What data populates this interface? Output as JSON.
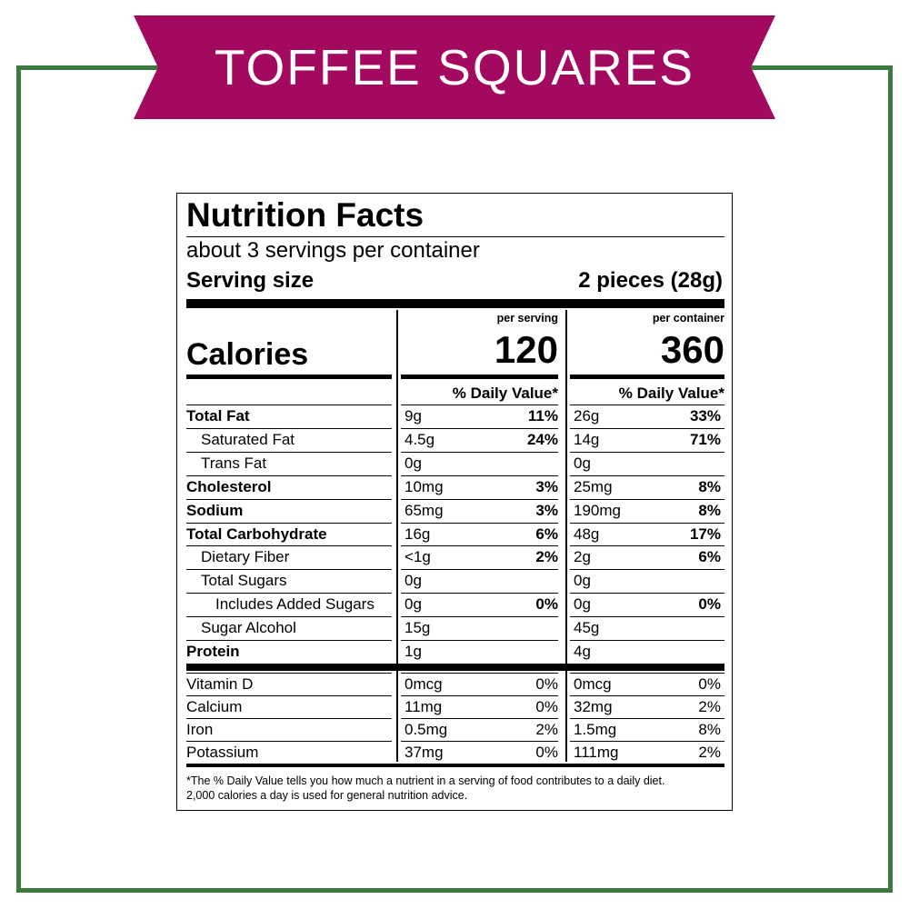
{
  "banner": {
    "title": "TOFFEE SQUARES"
  },
  "label": {
    "title": "Nutrition Facts",
    "servings_per_container": "about 3 servings per container",
    "serving_size_label": "Serving size",
    "serving_size_value": "2 pieces (28g)",
    "per_serving_header": "per serving",
    "per_container_header": "per container",
    "calories_label": "Calories",
    "calories_per_serving": "120",
    "calories_per_container": "360",
    "daily_value_header": "% Daily Value*",
    "nutrients": [
      {
        "name": "Total Fat",
        "bold": true,
        "indent": 0,
        "serving_amount": "9g",
        "serving_dv": "11%",
        "container_amount": "26g",
        "container_dv": "33%"
      },
      {
        "name": "Saturated Fat",
        "bold": false,
        "indent": 1,
        "serving_amount": "4.5g",
        "serving_dv": "24%",
        "container_amount": "14g",
        "container_dv": "71%"
      },
      {
        "name": "Trans Fat",
        "bold": false,
        "indent": 1,
        "serving_amount": "0g",
        "serving_dv": "",
        "container_amount": "0g",
        "container_dv": ""
      },
      {
        "name": "Cholesterol",
        "bold": true,
        "indent": 0,
        "serving_amount": "10mg",
        "serving_dv": "3%",
        "container_amount": "25mg",
        "container_dv": "8%"
      },
      {
        "name": "Sodium",
        "bold": true,
        "indent": 0,
        "serving_amount": "65mg",
        "serving_dv": "3%",
        "container_amount": "190mg",
        "container_dv": "8%"
      },
      {
        "name": "Total Carbohydrate",
        "bold": true,
        "indent": 0,
        "serving_amount": "16g",
        "serving_dv": "6%",
        "container_amount": "48g",
        "container_dv": "17%"
      },
      {
        "name": "Dietary Fiber",
        "bold": false,
        "indent": 1,
        "serving_amount": "<1g",
        "serving_dv": "2%",
        "container_amount": "2g",
        "container_dv": "6%"
      },
      {
        "name": "Total Sugars",
        "bold": false,
        "indent": 1,
        "serving_amount": "0g",
        "serving_dv": "",
        "container_amount": "0g",
        "container_dv": ""
      },
      {
        "name": "Includes Added Sugars",
        "bold": false,
        "indent": 2,
        "serving_amount": "0g",
        "serving_dv": "0%",
        "container_amount": "0g",
        "container_dv": "0%"
      },
      {
        "name": "Sugar Alcohol",
        "bold": false,
        "indent": 1,
        "serving_amount": "15g",
        "serving_dv": "",
        "container_amount": "45g",
        "container_dv": ""
      },
      {
        "name": "Protein",
        "bold": true,
        "indent": 0,
        "serving_amount": "1g",
        "serving_dv": "",
        "container_amount": "4g",
        "container_dv": ""
      }
    ],
    "vitamins": [
      {
        "name": "Vitamin D",
        "serving_amount": "0mcg",
        "serving_dv": "0%",
        "container_amount": "0mcg",
        "container_dv": "0%"
      },
      {
        "name": "Calcium",
        "serving_amount": "11mg",
        "serving_dv": "0%",
        "container_amount": "32mg",
        "container_dv": "2%"
      },
      {
        "name": "Iron",
        "serving_amount": "0.5mg",
        "serving_dv": "2%",
        "container_amount": "1.5mg",
        "container_dv": "8%"
      },
      {
        "name": "Potassium",
        "serving_amount": "37mg",
        "serving_dv": "0%",
        "container_amount": "111mg",
        "container_dv": "2%"
      }
    ],
    "footnote_line1": "*The % Daily Value tells you how much a nutrient in a serving of food contributes to a daily diet.",
    "footnote_line2": "2,000 calories a day is used for general nutrition advice."
  },
  "colors": {
    "banner": "#a3095f",
    "frame": "#3d7a3e"
  }
}
